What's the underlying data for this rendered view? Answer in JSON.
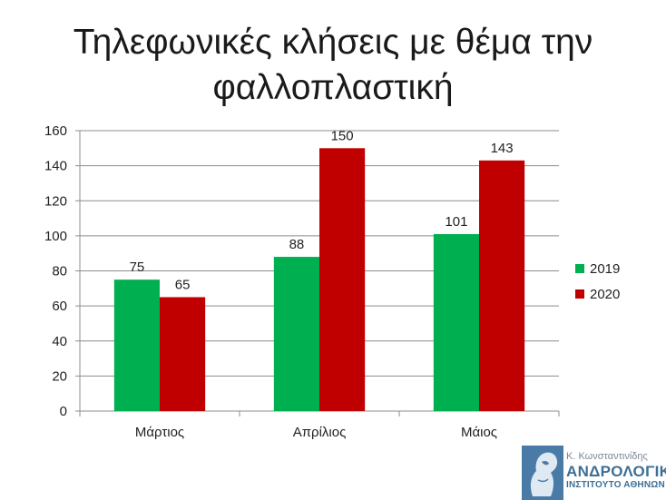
{
  "title_lines": [
    "Τηλεφωνικές κλήσεις με θέμα την",
    "φαλλοπλαστική"
  ],
  "chart_data": {
    "type": "bar",
    "title": "Τηλεφωνικές κλήσεις με θέμα την φαλλοπλαστική",
    "categories": [
      "Μάρτιος",
      "Απρίλιος",
      "Μάιος"
    ],
    "series": [
      {
        "name": "2019",
        "color": "#00b050",
        "values": [
          75,
          88,
          101
        ]
      },
      {
        "name": "2020",
        "color": "#c00000",
        "values": [
          65,
          150,
          143
        ]
      }
    ],
    "ylim": [
      0,
      160
    ],
    "yticks": [
      0,
      20,
      40,
      60,
      80,
      100,
      120,
      140,
      160
    ],
    "xlabel": "",
    "ylabel": "",
    "grid": true,
    "legend_position": "right",
    "data_labels": true
  },
  "logo": {
    "author": "Κ. Κωνσταντινίδης",
    "name": "ΑΝΔΡΟΛΟΓΙΚΟ",
    "subtitle": "ΙΝΣΤΙΤΟΥΤΟ ΑΘΗΝΩΝ",
    "color": "#3d6f96"
  }
}
